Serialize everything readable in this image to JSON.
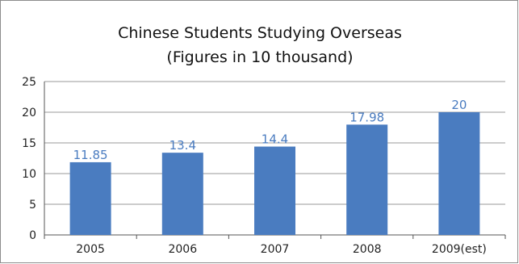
{
  "chart_data": {
    "type": "bar",
    "title": "Chinese Students Studying Overseas",
    "subtitle": "(Figures in 10 thousand)",
    "categories": [
      "2005",
      "2006",
      "2007",
      "2008",
      "2009(est)"
    ],
    "values": [
      11.85,
      13.4,
      14.4,
      17.98,
      20
    ],
    "data_labels": [
      "11.85",
      "13.4",
      "14.4",
      "17.98",
      "20"
    ],
    "xlabel": "",
    "ylabel": "",
    "ylim": [
      0,
      25
    ],
    "yticks": [
      0,
      5,
      10,
      15,
      20,
      25
    ],
    "grid": true,
    "legend": "none",
    "colors": {
      "bar": "#4a7cc0",
      "grid": "#9a9a9a",
      "axis": "#555555"
    }
  }
}
